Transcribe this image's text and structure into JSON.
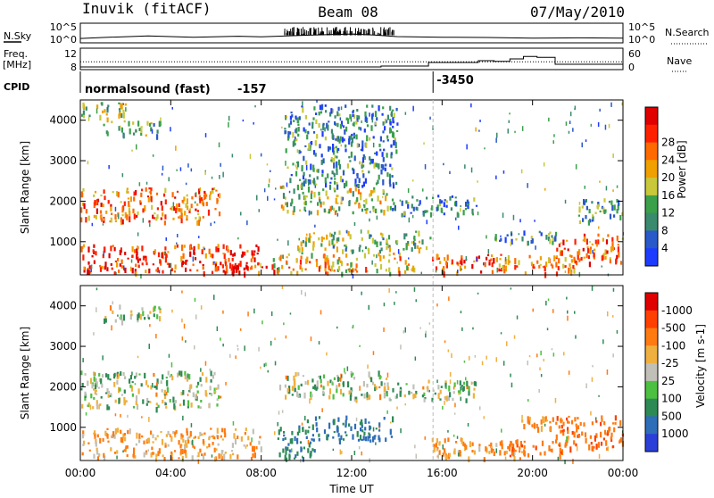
{
  "header": {
    "station": "Inuvik (fitACF)",
    "beam": "Beam 08",
    "date": "07/May/2010"
  },
  "noise_panel": {
    "left_label": "N.Sky",
    "right_label": "N.Search",
    "left_ticks": [
      "10^5",
      "10^0"
    ],
    "right_ticks": [
      "10^5",
      "10^0"
    ]
  },
  "freq_panel": {
    "left_label_line1": "Freq.",
    "left_label_line2": "[MHz]",
    "right_label": "Nave",
    "left_ticks": [
      "12",
      "8"
    ],
    "right_ticks": [
      "60",
      "0"
    ],
    "right_range": [
      0,
      60
    ]
  },
  "cpid_panel": {
    "label": "CPID",
    "mode_text": "normalsound (fast)",
    "mode1_value": "-157",
    "mode2_value": "-3450",
    "mode_change_hour": 15.6
  },
  "time_axis": {
    "title": "Time UT",
    "ticks": [
      "00:00",
      "04:00",
      "08:00",
      "12:00",
      "16:00",
      "20:00",
      "00:00"
    ],
    "range_hours": [
      0,
      24
    ]
  },
  "chart_data": [
    {
      "type": "line",
      "name": "noise",
      "title": "",
      "x_range_hours": [
        0,
        24
      ],
      "sky_level_exponent": [
        [
          0,
          0.8
        ],
        [
          1,
          1.1
        ],
        [
          3,
          1.6
        ],
        [
          5,
          1.2
        ],
        [
          7,
          1.5
        ],
        [
          8,
          1.3
        ],
        [
          10,
          1.8
        ],
        [
          12,
          2.2
        ],
        [
          13,
          1.9
        ],
        [
          14,
          1.4
        ],
        [
          16,
          1.2
        ],
        [
          18,
          1.1
        ],
        [
          20,
          0.9
        ],
        [
          22,
          1.0
        ],
        [
          24,
          0.9
        ]
      ]
    },
    {
      "type": "line",
      "name": "freq-nave",
      "title": "",
      "nave_steps": [
        [
          0,
          3
        ],
        [
          13.3,
          3
        ],
        [
          13.3,
          6
        ],
        [
          15.4,
          6
        ],
        [
          15.4,
          18
        ],
        [
          17.6,
          18
        ],
        [
          17.6,
          24
        ],
        [
          18.3,
          24
        ],
        [
          18.3,
          22
        ],
        [
          19.0,
          22
        ],
        [
          19.0,
          30
        ],
        [
          19.6,
          30
        ],
        [
          19.6,
          38
        ],
        [
          20.2,
          38
        ],
        [
          20.2,
          35
        ],
        [
          21.0,
          35
        ],
        [
          21.0,
          12
        ],
        [
          24,
          12
        ]
      ],
      "freq_mhz": 10.5
    },
    {
      "type": "heatmap",
      "name": "power",
      "title": "",
      "xlabel": "Time UT",
      "ylabel": "Slant Range [km]",
      "yticks": [
        1000,
        2000,
        3000,
        4000
      ],
      "ylim": [
        180,
        4500
      ],
      "colorbar": {
        "label": "Power [dB]",
        "ticks": [
          4,
          8,
          12,
          16,
          20,
          24,
          28
        ],
        "colors": [
          "#1e3cff",
          "#2a59c9",
          "#3a8a6d",
          "#3aa04a",
          "#c8c83a",
          "#f0a000",
          "#ff6a00",
          "#ff2000",
          "#e00000"
        ]
      },
      "regions": [
        {
          "t": [
            0.0,
            7.9
          ],
          "r": [
            250,
            950
          ],
          "v": 26
        },
        {
          "t": [
            5.8,
            8.7
          ],
          "r": [
            250,
            500
          ],
          "v": 29
        },
        {
          "t": [
            0.0,
            6.2
          ],
          "r": [
            1500,
            2350
          ],
          "v": 22
        },
        {
          "t": [
            1.0,
            3.5
          ],
          "r": [
            3650,
            4000
          ],
          "v": 12
        },
        {
          "t": [
            0.0,
            2.0
          ],
          "r": [
            4050,
            4450
          ],
          "v": 14
        },
        {
          "t": [
            8.8,
            13.6
          ],
          "r": [
            1750,
            2400
          ],
          "v": 15
        },
        {
          "t": [
            9.5,
            15.5
          ],
          "r": [
            800,
            1300
          ],
          "v": 14
        },
        {
          "t": [
            8.5,
            14.8
          ],
          "r": [
            250,
            750
          ],
          "v": 20
        },
        {
          "t": [
            13.6,
            17.5
          ],
          "r": [
            1700,
            2200
          ],
          "v": 9
        },
        {
          "t": [
            15.5,
            18.8
          ],
          "r": [
            250,
            700
          ],
          "v": 25
        },
        {
          "t": [
            18.5,
            22.0
          ],
          "r": [
            250,
            700
          ],
          "v": 21
        },
        {
          "t": [
            18.0,
            21.0
          ],
          "r": [
            1000,
            1300
          ],
          "v": 10
        },
        {
          "t": [
            21.0,
            24.0
          ],
          "r": [
            500,
            1200
          ],
          "v": 24
        },
        {
          "t": [
            22.0,
            24.0
          ],
          "r": [
            1500,
            2100
          ],
          "v": 11
        },
        {
          "t": [
            9.0,
            14.0
          ],
          "r": [
            2400,
            4400
          ],
          "v": 9
        }
      ]
    },
    {
      "type": "heatmap",
      "name": "velocity",
      "title": "",
      "xlabel": "Time UT",
      "ylabel": "Slant Range [km]",
      "yticks": [
        1000,
        2000,
        3000,
        4000
      ],
      "ylim": [
        180,
        4500
      ],
      "colorbar": {
        "label": "Velocity [m s-1]",
        "ticks": [
          "1000",
          "500",
          "100",
          "25",
          "-25",
          "-100",
          "-500",
          "-1000"
        ],
        "colors": [
          "#2a3fd8",
          "#2e6db8",
          "#2e8a55",
          "#4cc040",
          "#c0c0b8",
          "#f0b040",
          "#ff7a10",
          "#ff4000",
          "#e00000"
        ]
      },
      "regions": [
        {
          "t": [
            0.0,
            8.0
          ],
          "r": [
            250,
            1000
          ],
          "v": "-120"
        },
        {
          "t": [
            0.0,
            6.2
          ],
          "r": [
            1500,
            2400
          ],
          "v": "0"
        },
        {
          "t": [
            1.0,
            3.5
          ],
          "r": [
            3650,
            4050
          ],
          "v": "0"
        },
        {
          "t": [
            8.8,
            13.8
          ],
          "r": [
            1750,
            2400
          ],
          "v": "0"
        },
        {
          "t": [
            10.0,
            13.8
          ],
          "r": [
            700,
            1300
          ],
          "v": "300"
        },
        {
          "t": [
            8.7,
            10.5
          ],
          "r": [
            250,
            1100
          ],
          "v": "200"
        },
        {
          "t": [
            13.5,
            17.5
          ],
          "r": [
            1700,
            2200
          ],
          "v": "0"
        },
        {
          "t": [
            15.5,
            19.5
          ],
          "r": [
            250,
            750
          ],
          "v": "-150"
        },
        {
          "t": [
            18.5,
            21.5
          ],
          "r": [
            300,
            700
          ],
          "v": "-300"
        },
        {
          "t": [
            21.0,
            24.0
          ],
          "r": [
            500,
            1300
          ],
          "v": "-350"
        },
        {
          "t": [
            19.5,
            22.0
          ],
          "r": [
            1000,
            1300
          ],
          "v": "-200"
        }
      ]
    }
  ]
}
